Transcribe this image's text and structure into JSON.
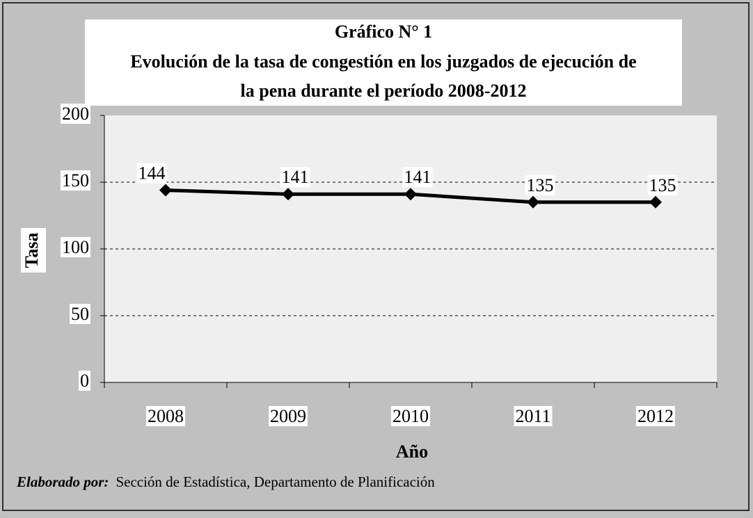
{
  "chart_data": {
    "type": "line",
    "title": "Gráfico N° 1",
    "subtitle": [
      "Evolución de la tasa de congestión en los juzgados de ejecución de",
      "la pena durante el período 2008-2012"
    ],
    "categories": [
      "2008",
      "2009",
      "2010",
      "2011",
      "2012"
    ],
    "values": [
      144,
      141,
      141,
      135,
      135
    ],
    "color": "#000000",
    "ylim": [
      0,
      200
    ],
    "yticks": [
      0,
      50,
      100,
      150,
      200
    ],
    "grid": true,
    "x_label": "Año",
    "y_label": "Tasa",
    "source_label": "Elaborado por:",
    "source": "Sección de Estadística, Departamento de Planificación"
  }
}
